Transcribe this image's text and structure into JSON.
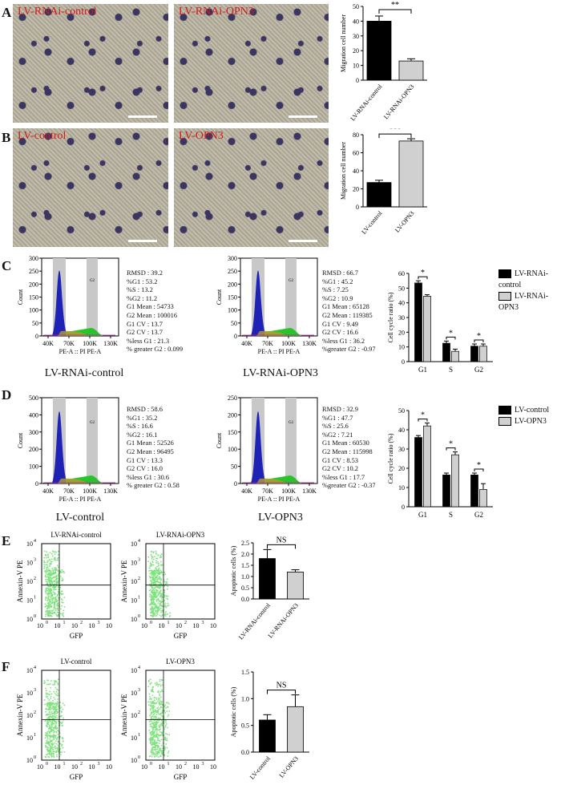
{
  "panels": [
    "A",
    "B",
    "C",
    "D",
    "E",
    "F"
  ],
  "micrographs": {
    "a1": "LV-RNAi-control",
    "a2": "LV-RNAi-OPN3",
    "b1": "LV-control",
    "b2": "LV-OPN3"
  },
  "flow": {
    "c1": {
      "stats": "RMSD : 39.2\n%G1 : 53.2\n%S : 13.2\n%G2 : 11.2\nG1 Mean : 54733\nG2 Mean : 100016\nG1 CV : 13.7\nG2 CV : 13.7\n%less G1 : 21.3\n% greater G2 : 0.099",
      "caption": "LV-RNAi-control",
      "ymax": 300,
      "yticks": [
        "0",
        "50",
        "100",
        "150",
        "200",
        "250",
        "300"
      ]
    },
    "c2": {
      "stats": "RMSD : 66.7\n%G1 : 45.2\n%S : 7.25\n%G2 : 10.9\nG1 Mean : 65128\nG2 Mean : 119385\nG1 CV : 9.49\nG2 CV : 16.6\n%less G1 : 36.2\n%greater G2 : -0.97",
      "caption": "LV-RNAi-OPN3",
      "ymax": 300,
      "yticks": [
        "0",
        "50",
        "100",
        "150",
        "200",
        "250",
        "300"
      ]
    },
    "d1": {
      "stats": "RMSD : 58.6\n%G1 : 35.2\n%S : 16.6\n%G2 : 16.1\nG1 Mean : 52526\nG2 Mean : 96495\nG1 CV : 13.3\nG2 CV : 16.0\n%less G1 : 30.6\n% greater G2 : 0.58",
      "caption": "LV-control",
      "ymax": 500,
      "yticks": [
        "0",
        "100",
        "200",
        "300",
        "400",
        "500"
      ]
    },
    "d2": {
      "stats": "RMSD : 32.9\n%G1 : 47.7\n%S : 25.6\n%G2 : 7.21\nG1 Mean : 60530\nG2 Mean : 115998\nG1 CV : 8.53\nG2 CV : 10.2\n%less G1 : 17.7\n%greater G2 : -0.37",
      "caption": "LV-OPN3",
      "ymax": 250,
      "yticks": [
        "0",
        "50",
        "100",
        "150",
        "200",
        "250"
      ]
    },
    "xlabel": "PE-A :: PI PE-A",
    "xticks": [
      "40K",
      "70K",
      "100K",
      "130K"
    ],
    "ylabel": "Count",
    "gate_g2": "G2"
  },
  "scatter": {
    "e1": "LV-RNAi-control",
    "e2": "LV-RNAi-OPN3",
    "f1": "LV-control",
    "f2": "LV-OPN3",
    "ylabel": "Annexin-V PE",
    "xlabel": "GFP",
    "ticks": [
      "10",
      "10",
      "10",
      "10",
      "10"
    ],
    "exps": [
      "0",
      "1",
      "2",
      "3",
      "4"
    ]
  },
  "legends": {
    "c": [
      "LV-RNAi-control",
      "LV-RNAi-OPN3"
    ],
    "d": [
      "LV-control",
      "LV-OPN3"
    ]
  },
  "chart_data": [
    {
      "type": "bar",
      "panel": "A",
      "categories": [
        "LV-RNAi-control",
        "LV-RNAi-OPN3"
      ],
      "values": [
        40,
        13
      ],
      "errors": [
        3.5,
        1.5
      ],
      "ylabel": "Migration cell number",
      "ylim": [
        0,
        50
      ],
      "yticks": [
        0,
        10,
        20,
        30,
        40,
        50
      ],
      "significance": "**",
      "colors": [
        "#000000",
        "#d0d0d0"
      ]
    },
    {
      "type": "bar",
      "panel": "B",
      "categories": [
        "LV-control",
        "LV-OPN3"
      ],
      "values": [
        27,
        73
      ],
      "errors": [
        2.5,
        2.5
      ],
      "ylabel": "Migration cell number",
      "ylim": [
        0,
        80
      ],
      "yticks": [
        0,
        20,
        40,
        60,
        80
      ],
      "significance": "***",
      "colors": [
        "#000000",
        "#d0d0d0"
      ]
    },
    {
      "type": "bar",
      "panel": "C",
      "categories": [
        "G1",
        "S",
        "G2"
      ],
      "series": [
        {
          "name": "LV-RNAi-control",
          "values": [
            53.5,
            12.5,
            10.5
          ],
          "errors": [
            1.5,
            1.5,
            1.5
          ]
        },
        {
          "name": "LV-RNAi-OPN3",
          "values": [
            44.5,
            7,
            10.5
          ],
          "errors": [
            1,
            1.5,
            1.5
          ]
        }
      ],
      "ylabel": "Cell cycle ratio (%)",
      "ylim": [
        0,
        60
      ],
      "yticks": [
        0,
        10,
        20,
        30,
        40,
        50,
        60
      ],
      "significance": [
        "*",
        "*",
        "*"
      ]
    },
    {
      "type": "bar",
      "panel": "D",
      "categories": [
        "G1",
        "S",
        "G2"
      ],
      "series": [
        {
          "name": "LV-control",
          "values": [
            36,
            16.5,
            16.5
          ],
          "errors": [
            1,
            1,
            1
          ]
        },
        {
          "name": "LV-OPN3",
          "values": [
            42,
            27,
            9
          ],
          "errors": [
            1.5,
            1.5,
            3
          ]
        }
      ],
      "ylabel": "Cell cycle ratio (%)",
      "ylim": [
        0,
        50
      ],
      "yticks": [
        0,
        10,
        20,
        30,
        40,
        50
      ],
      "significance": [
        "*",
        "*",
        "*"
      ]
    },
    {
      "type": "bar",
      "panel": "E",
      "categories": [
        "LV-RNAi-control",
        "LV-RNAi-OPN3"
      ],
      "values": [
        1.8,
        1.2
      ],
      "errors": [
        0.4,
        0.1
      ],
      "ylabel": "Apoptotic cells (%)",
      "ylim": [
        0,
        2.5
      ],
      "yticks": [
        0,
        0.5,
        1.0,
        1.5,
        2.0,
        2.5
      ],
      "ytick_labels": [
        "0.0",
        "0.5",
        "1.0",
        "1.5",
        "2.0",
        "2.5"
      ],
      "significance": "NS"
    },
    {
      "type": "bar",
      "panel": "F",
      "categories": [
        "LV-control",
        "LV-OPN3"
      ],
      "values": [
        0.6,
        0.85
      ],
      "errors": [
        0.1,
        0.22
      ],
      "ylabel": "Apoptotic cells (%)",
      "ylim": [
        0,
        1.5
      ],
      "yticks": [
        0,
        0.5,
        1.0,
        1.5
      ],
      "ytick_labels": [
        "0.0",
        "0.5",
        "1.0",
        "1.5"
      ],
      "significance": "NS"
    }
  ]
}
